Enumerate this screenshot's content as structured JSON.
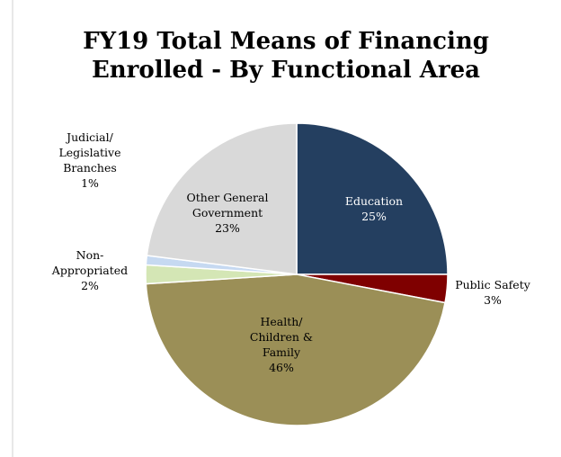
{
  "chart_data": {
    "type": "pie",
    "title": "FY19 Total Means of Financing Enrolled - By Functional Area",
    "categories": [
      "Education",
      "Public Safety",
      "Health/ Children & Family",
      "Non- Appropriated",
      "Judicial/ Legislative Branches",
      "Other General Government"
    ],
    "values": [
      25,
      3,
      46,
      2,
      1,
      23
    ],
    "value_labels": [
      "25%",
      "3%",
      "46%",
      "2%",
      "1%",
      "23%"
    ],
    "colors": [
      "#243f60",
      "#7f0000",
      "#9b8f57",
      "#d4e6b5",
      "#c6d9f1",
      "#d9d9d9"
    ]
  }
}
